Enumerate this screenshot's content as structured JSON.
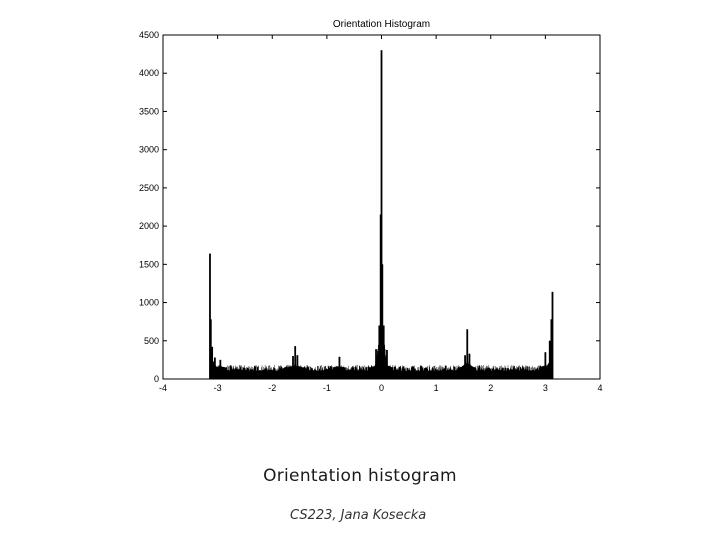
{
  "slide": {
    "caption": "Orientation histogram",
    "credit": "CS223, Jana Kosecka"
  },
  "chart_data": {
    "type": "bar",
    "title": "Orientation Histogram",
    "xlabel": "",
    "ylabel": "",
    "xlim": [
      -4,
      4
    ],
    "ylim": [
      0,
      4500
    ],
    "xticks": [
      -4,
      -3,
      -2,
      -1,
      0,
      1,
      2,
      3,
      4
    ],
    "yticks": [
      0,
      500,
      1000,
      1500,
      2000,
      2500,
      3000,
      3500,
      4000,
      4500
    ],
    "grid": false,
    "bar_color": "#000000",
    "baseline_level": 150,
    "x_range": [
      -3.14159,
      3.14159
    ],
    "peaks": [
      {
        "x": -3.14,
        "value": 1640
      },
      {
        "x": -3.125,
        "value": 780
      },
      {
        "x": -3.1,
        "value": 420
      },
      {
        "x": -3.05,
        "value": 280
      },
      {
        "x": -2.95,
        "value": 250
      },
      {
        "x": -1.62,
        "value": 300
      },
      {
        "x": -1.58,
        "value": 430
      },
      {
        "x": -1.54,
        "value": 310
      },
      {
        "x": -0.77,
        "value": 290
      },
      {
        "x": -0.1,
        "value": 390
      },
      {
        "x": -0.04,
        "value": 700
      },
      {
        "x": -0.015,
        "value": 2150
      },
      {
        "x": 0.0,
        "value": 4300
      },
      {
        "x": 0.015,
        "value": 1500
      },
      {
        "x": 0.04,
        "value": 700
      },
      {
        "x": 0.1,
        "value": 380
      },
      {
        "x": 1.53,
        "value": 310
      },
      {
        "x": 1.57,
        "value": 650
      },
      {
        "x": 1.61,
        "value": 330
      },
      {
        "x": 3.0,
        "value": 350
      },
      {
        "x": 3.08,
        "value": 500
      },
      {
        "x": 3.11,
        "value": 780
      },
      {
        "x": 3.13,
        "value": 1140
      }
    ]
  }
}
